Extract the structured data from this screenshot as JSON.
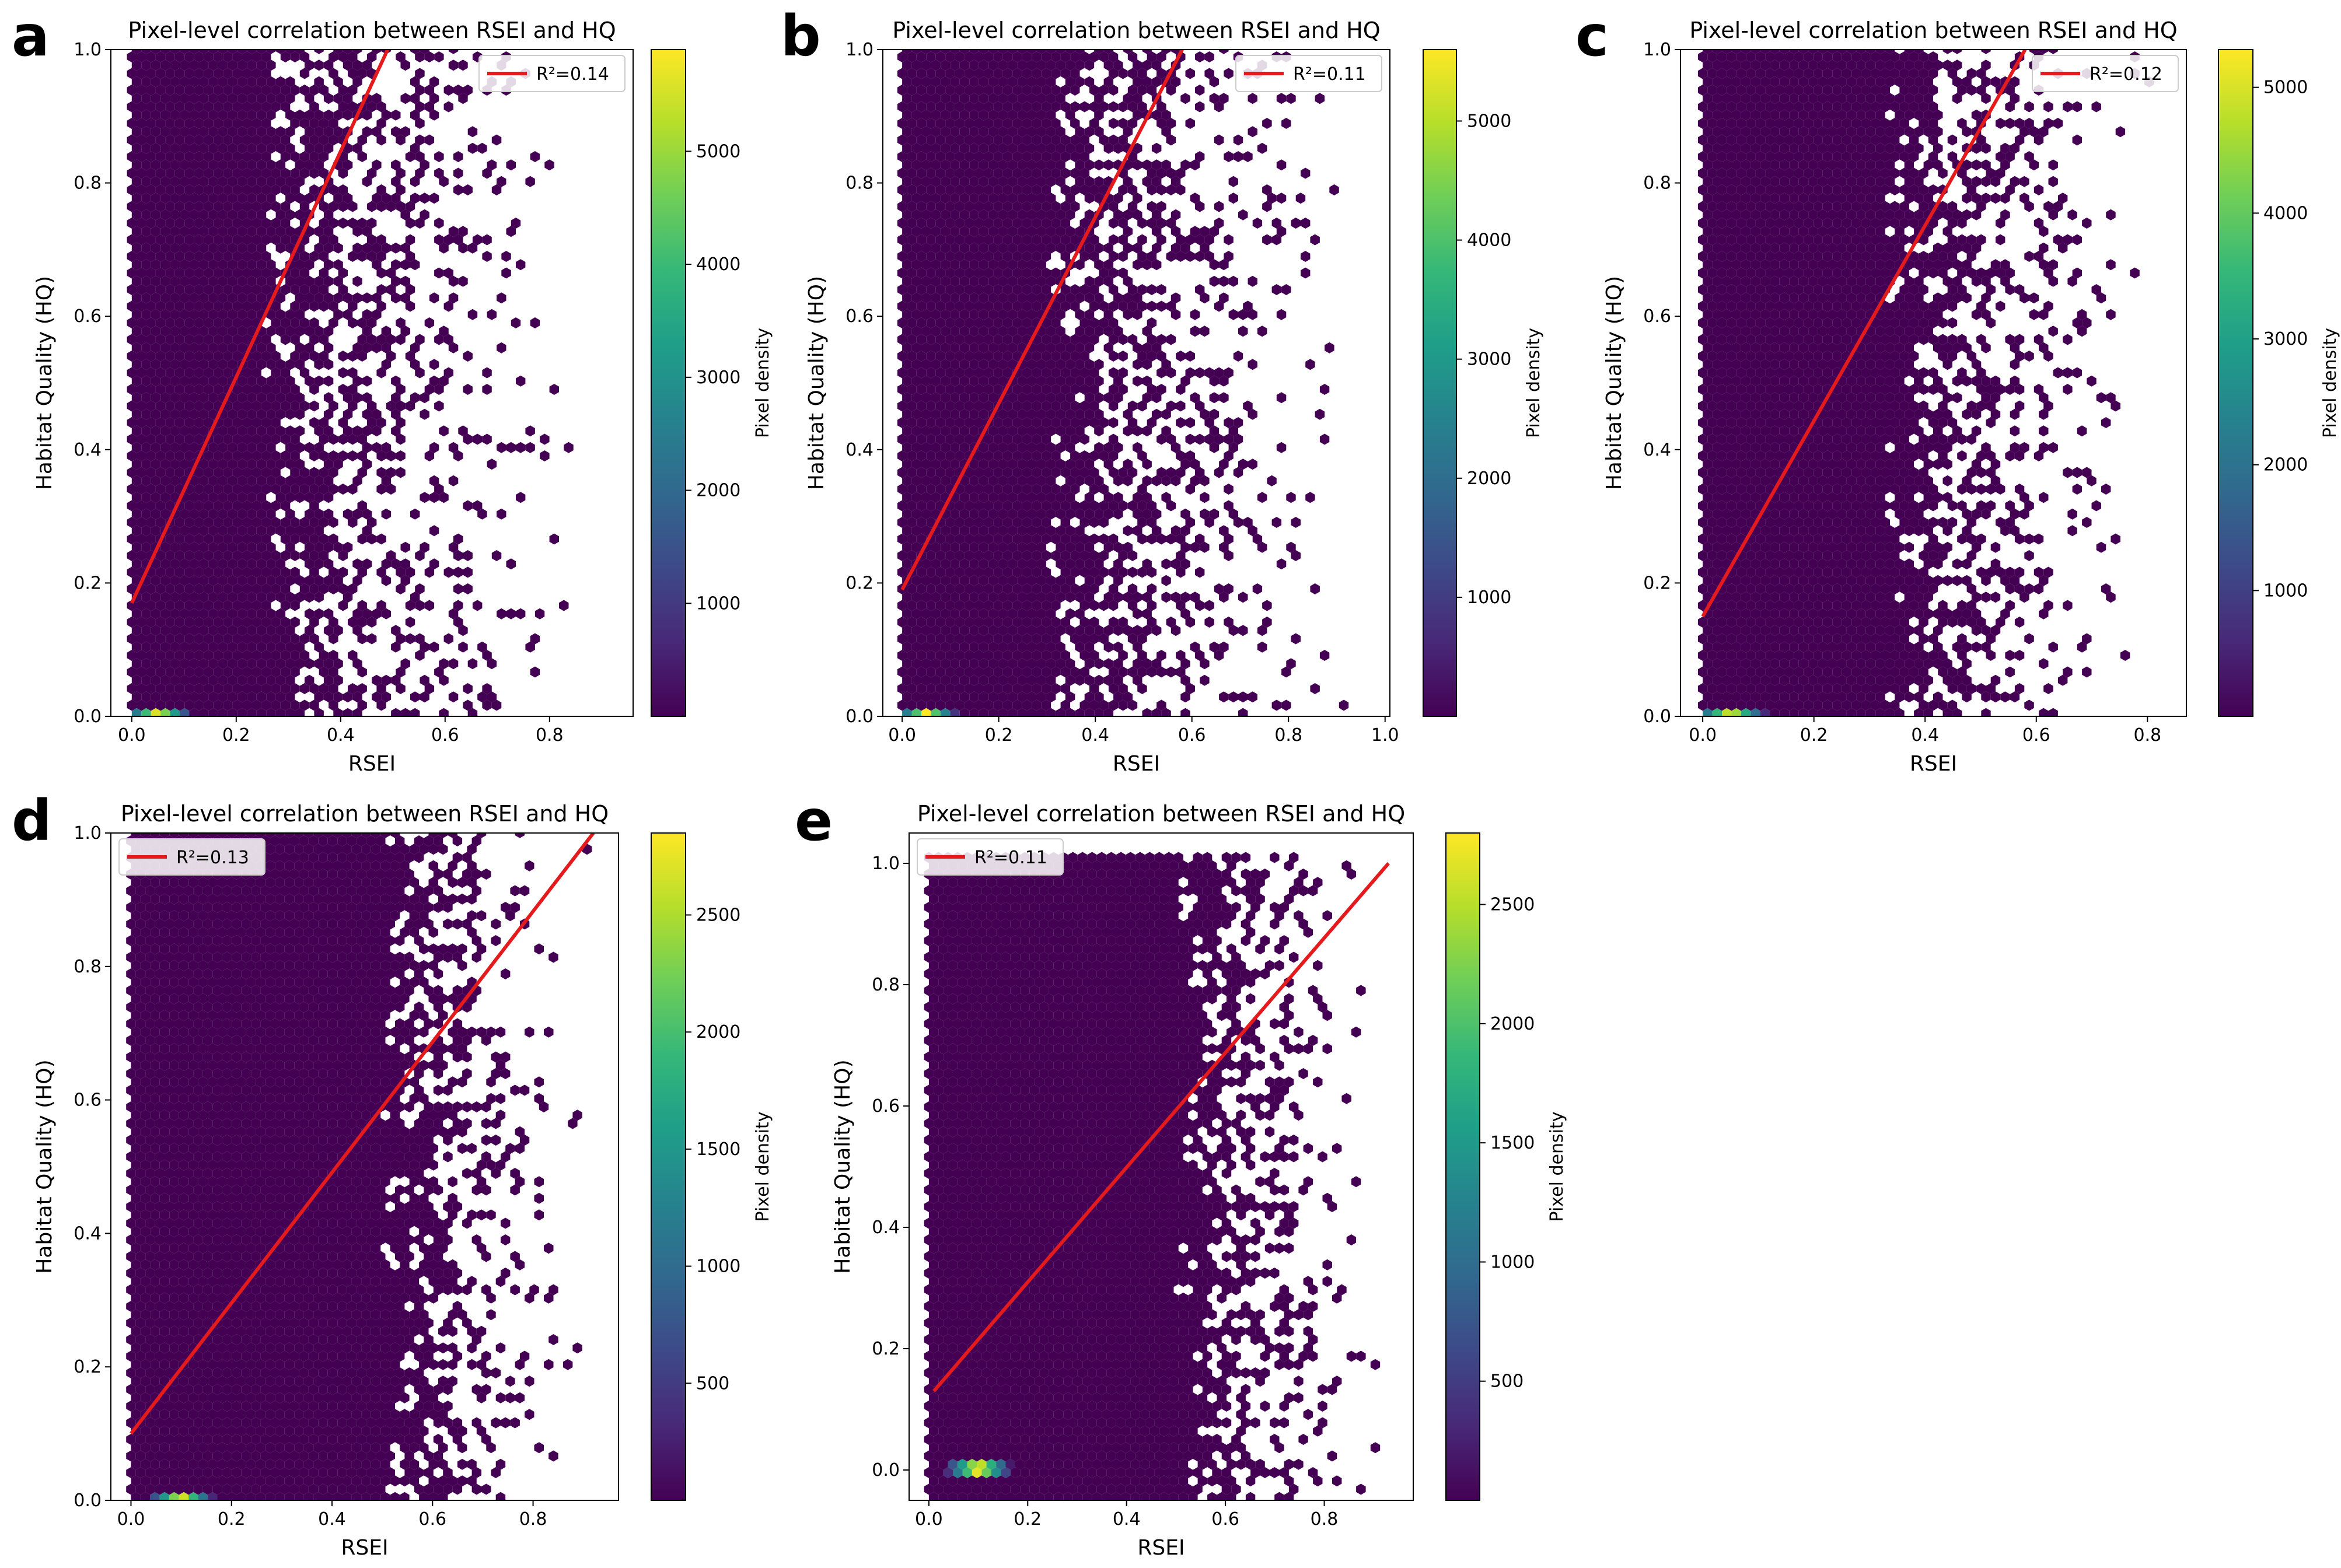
{
  "figure": {
    "colormap": [
      "#440154",
      "#482878",
      "#3e4989",
      "#31688e",
      "#26828e",
      "#1f9e89",
      "#35b779",
      "#6ece58",
      "#b5de2b",
      "#fde725"
    ],
    "background_color": "#ffffff",
    "line_color": "#e41a1c"
  },
  "chart_data": [
    {
      "panel_label": "a",
      "type": "hexbin",
      "title": "Pixel-level correlation between RSEI and HQ",
      "xlabel": "RSEI",
      "ylabel": "Habitat Quality (HQ)",
      "xlim": [
        -0.04,
        0.96
      ],
      "ylim": [
        0,
        1.0
      ],
      "xticks": [
        "0.0",
        "0.2",
        "0.4",
        "0.6",
        "0.8"
      ],
      "xtick_values": [
        0,
        0.2,
        0.4,
        0.6,
        0.8
      ],
      "yticks": [
        "0.0",
        "0.2",
        "0.4",
        "0.6",
        "0.8",
        "1.0"
      ],
      "ytick_values": [
        0,
        0.2,
        0.4,
        0.6,
        0.8,
        1.0
      ],
      "colorbar_label": "Pixel density",
      "colorbar_ticks": [
        "1000",
        "2000",
        "3000",
        "4000",
        "5000"
      ],
      "colorbar_tick_values": [
        1000,
        2000,
        3000,
        4000,
        5000
      ],
      "colorbar_max": 5900,
      "legend": {
        "entry": "R²=0.14",
        "position": "top-right"
      },
      "fit_line": {
        "x": [
          0.0,
          0.49
        ],
        "y": [
          0.17,
          1.0
        ]
      },
      "density_core": {
        "x_start": 0.0,
        "x_end": 0.25,
        "peak_x": 0.05,
        "peak_y": 0.0,
        "peak_value": 5900
      },
      "scatter_fringe": {
        "x_end": 0.91,
        "y_max": 1.0
      }
    },
    {
      "panel_label": "b",
      "type": "hexbin",
      "title": "Pixel-level correlation between RSEI and HQ",
      "xlabel": "RSEI",
      "ylabel": "Habitat Quality (HQ)",
      "xlim": [
        -0.04,
        1.01
      ],
      "ylim": [
        0,
        1.0
      ],
      "xticks": [
        "0.0",
        "0.2",
        "0.4",
        "0.6",
        "0.8",
        "1.0"
      ],
      "xtick_values": [
        0,
        0.2,
        0.4,
        0.6,
        0.8,
        1.0
      ],
      "yticks": [
        "0.0",
        "0.2",
        "0.4",
        "0.6",
        "0.8",
        "1.0"
      ],
      "ytick_values": [
        0,
        0.2,
        0.4,
        0.6,
        0.8,
        1.0
      ],
      "colorbar_label": "Pixel density",
      "colorbar_ticks": [
        "1000",
        "2000",
        "3000",
        "4000",
        "5000"
      ],
      "colorbar_tick_values": [
        1000,
        2000,
        3000,
        4000,
        5000
      ],
      "colorbar_max": 5600,
      "legend": {
        "entry": "R²=0.11",
        "position": "top-right"
      },
      "fit_line": {
        "x": [
          0.0,
          0.58
        ],
        "y": [
          0.19,
          1.0
        ]
      },
      "density_core": {
        "x_start": 0.0,
        "x_end": 0.3,
        "peak_x": 0.05,
        "peak_y": 0.0,
        "peak_value": 5600
      },
      "scatter_fringe": {
        "x_end": 0.96,
        "y_max": 1.0
      }
    },
    {
      "panel_label": "c",
      "type": "hexbin",
      "title": "Pixel-level correlation between RSEI and HQ",
      "xlabel": "RSEI",
      "ylabel": "Habitat Quality (HQ)",
      "xlim": [
        -0.04,
        0.87
      ],
      "ylim": [
        0,
        1.0
      ],
      "xticks": [
        "0.0",
        "0.2",
        "0.4",
        "0.6",
        "0.8"
      ],
      "xtick_values": [
        0,
        0.2,
        0.4,
        0.6,
        0.8
      ],
      "yticks": [
        "0.0",
        "0.2",
        "0.4",
        "0.6",
        "0.8",
        "1.0"
      ],
      "ytick_values": [
        0,
        0.2,
        0.4,
        0.6,
        0.8,
        1.0
      ],
      "colorbar_label": "Pixel density",
      "colorbar_ticks": [
        "1000",
        "2000",
        "3000",
        "4000",
        "5000"
      ],
      "colorbar_tick_values": [
        1000,
        2000,
        3000,
        4000,
        5000
      ],
      "colorbar_max": 5300,
      "legend": {
        "entry": "R²=0.12",
        "position": "top-right"
      },
      "fit_line": {
        "x": [
          0.0,
          0.58
        ],
        "y": [
          0.15,
          1.0
        ]
      },
      "density_core": {
        "x_start": 0.0,
        "x_end": 0.33,
        "peak_x": 0.05,
        "peak_y": 0.0,
        "peak_value": 5300
      },
      "scatter_fringe": {
        "x_end": 0.82,
        "y_max": 1.0
      }
    },
    {
      "panel_label": "d",
      "type": "hexbin",
      "title": "Pixel-level correlation between RSEI and HQ",
      "xlabel": "RSEI",
      "ylabel": "Habitat Quality (HQ)",
      "xlim": [
        -0.04,
        0.97
      ],
      "ylim": [
        0,
        1.0
      ],
      "xticks": [
        "0.0",
        "0.2",
        "0.4",
        "0.6",
        "0.8"
      ],
      "xtick_values": [
        0,
        0.2,
        0.4,
        0.6,
        0.8
      ],
      "yticks": [
        "0.0",
        "0.2",
        "0.4",
        "0.6",
        "0.8",
        "1.0"
      ],
      "ytick_values": [
        0,
        0.2,
        0.4,
        0.6,
        0.8,
        1.0
      ],
      "colorbar_label": "Pixel density",
      "colorbar_ticks": [
        "500",
        "1000",
        "1500",
        "2000",
        "2500"
      ],
      "colorbar_tick_values": [
        500,
        1000,
        1500,
        2000,
        2500
      ],
      "colorbar_max": 2850,
      "legend": {
        "entry": "R²=0.13",
        "position": "top-left"
      },
      "fit_line": {
        "x": [
          0.0,
          0.92
        ],
        "y": [
          0.1,
          1.0
        ]
      },
      "density_core": {
        "x_start": 0.0,
        "x_end": 0.5,
        "peak_x": 0.1,
        "peak_y": 0.0,
        "peak_value": 2850
      },
      "scatter_fringe": {
        "x_end": 0.92,
        "y_max": 1.0
      }
    },
    {
      "panel_label": "e",
      "type": "hexbin",
      "title": "Pixel-level correlation between RSEI and HQ",
      "xlabel": "RSEI",
      "ylabel": "Habitat Quality (HQ)",
      "xlim": [
        -0.04,
        0.98
      ],
      "ylim": [
        -0.05,
        1.05
      ],
      "xticks": [
        "0.0",
        "0.2",
        "0.4",
        "0.6",
        "0.8"
      ],
      "xtick_values": [
        0,
        0.2,
        0.4,
        0.6,
        0.8
      ],
      "yticks": [
        "0.0",
        "0.2",
        "0.4",
        "0.6",
        "0.8",
        "1.0"
      ],
      "ytick_values": [
        0,
        0.2,
        0.4,
        0.6,
        0.8,
        1.0
      ],
      "colorbar_label": "Pixel density",
      "colorbar_ticks": [
        "500",
        "1000",
        "1500",
        "2000",
        "2500"
      ],
      "colorbar_tick_values": [
        500,
        1000,
        1500,
        2000,
        2500
      ],
      "colorbar_max": 2800,
      "legend": {
        "entry": "R²=0.11",
        "position": "top-left"
      },
      "fit_line": {
        "x": [
          0.01,
          0.93
        ],
        "y": [
          0.13,
          1.0
        ]
      },
      "density_core": {
        "x_start": 0.0,
        "x_end": 0.5,
        "peak_x": 0.1,
        "peak_y": 0.0,
        "peak_value": 2800
      },
      "scatter_fringe": {
        "x_end": 0.93,
        "y_max": 1.0
      }
    }
  ]
}
